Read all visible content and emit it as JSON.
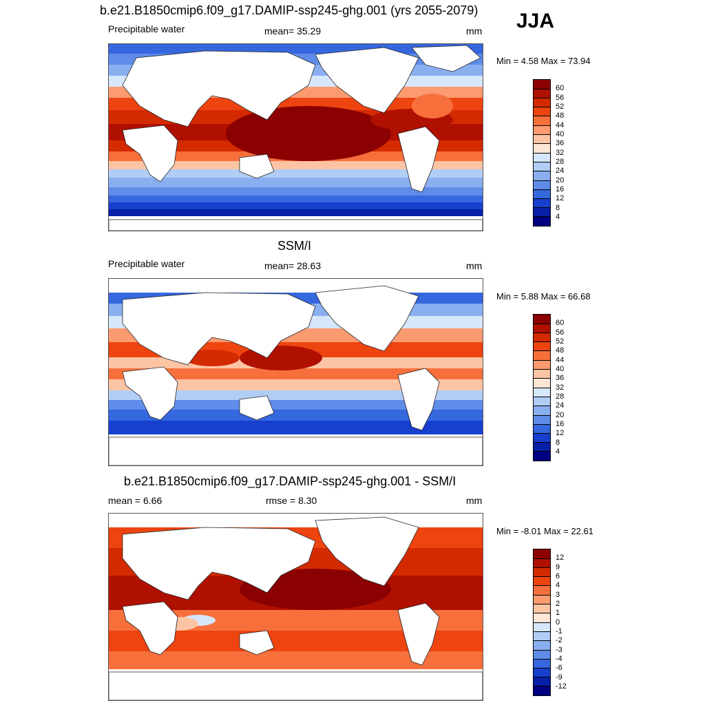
{
  "season": "JJA",
  "panels": [
    {
      "title": "b.e21.B1850cmip6.f09_g17.DAMIP-ssp245-ghg.001 (yrs 2055-2079)",
      "left_label": "Precipitable water",
      "center_label": "mean=  35.29",
      "units": "mm",
      "minmax": "Min =   4.58 Max =  73.94",
      "colorbar": {
        "labels": [
          "60",
          "56",
          "52",
          "48",
          "44",
          "40",
          "36",
          "32",
          "28",
          "24",
          "20",
          "16",
          "12",
          "8",
          "4"
        ],
        "colors": [
          "#8b0000",
          "#b01000",
          "#d32a00",
          "#ee4410",
          "#f7703c",
          "#fc9a70",
          "#fdc4a4",
          "#fee6d6",
          "#d6e6fb",
          "#b1cdf6",
          "#8aaff0",
          "#5e8ce8",
          "#3567df",
          "#1740cf",
          "#0820a8",
          "#000080"
        ]
      }
    },
    {
      "title": "SSM/I",
      "left_label": "Precipitable water",
      "center_label": "mean=  28.63",
      "units": "mm",
      "minmax": "Min =   5.88 Max =  66.68",
      "colorbar": {
        "labels": [
          "60",
          "56",
          "52",
          "48",
          "44",
          "40",
          "36",
          "32",
          "28",
          "24",
          "20",
          "16",
          "12",
          "8",
          "4"
        ],
        "colors": [
          "#8b0000",
          "#b01000",
          "#d32a00",
          "#ee4410",
          "#f7703c",
          "#fc9a70",
          "#fdc4a4",
          "#fee6d6",
          "#d6e6fb",
          "#b1cdf6",
          "#8aaff0",
          "#5e8ce8",
          "#3567df",
          "#1740cf",
          "#0820a8",
          "#000080"
        ]
      }
    },
    {
      "title": "b.e21.B1850cmip6.f09_g17.DAMIP-ssp245-ghg.001 - SSM/I",
      "left_label": "mean =   6.66",
      "center_label": "rmse =   8.30",
      "units": "mm",
      "minmax": "Min =  -8.01 Max =  22.61",
      "colorbar": {
        "labels": [
          "12",
          "9",
          "6",
          "4",
          "3",
          "2",
          "1",
          "0",
          "-1",
          "-2",
          "-3",
          "-4",
          "-6",
          "-9",
          "-12"
        ],
        "colors": [
          "#8b0000",
          "#b01000",
          "#d32a00",
          "#ee4410",
          "#f7703c",
          "#fc9a70",
          "#fdc4a4",
          "#fee6d6",
          "#d6e6fb",
          "#b1cdf6",
          "#8aaff0",
          "#5e8ce8",
          "#3567df",
          "#1740cf",
          "#0820a8",
          "#000080"
        ]
      }
    }
  ]
}
